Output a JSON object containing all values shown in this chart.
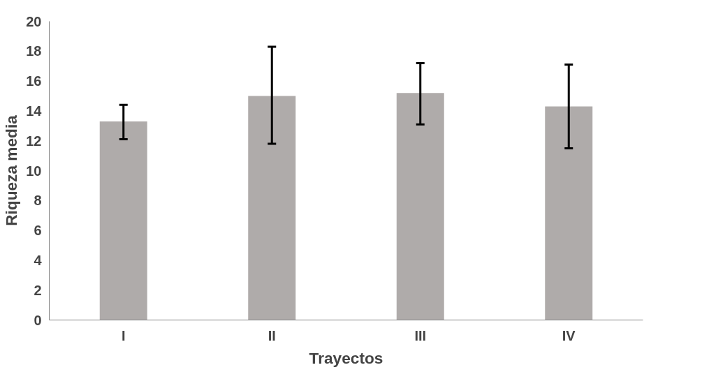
{
  "chart_data": {
    "type": "bar",
    "xlabel": "Trayectos",
    "ylabel": "Riqueza media",
    "categories": [
      "I",
      "II",
      "III",
      "IV"
    ],
    "values": [
      13.3,
      15.0,
      15.2,
      14.3
    ],
    "color": "#afabaa",
    "errors": [
      [
        12.1,
        14.4
      ],
      [
        11.8,
        18.3
      ],
      [
        13.1,
        17.2
      ],
      [
        11.5,
        17.1
      ]
    ],
    "ylim": [
      0,
      20
    ],
    "yticks": [
      0,
      2,
      4,
      6,
      8,
      10,
      12,
      14,
      16,
      18,
      20
    ],
    "grid": false
  }
}
